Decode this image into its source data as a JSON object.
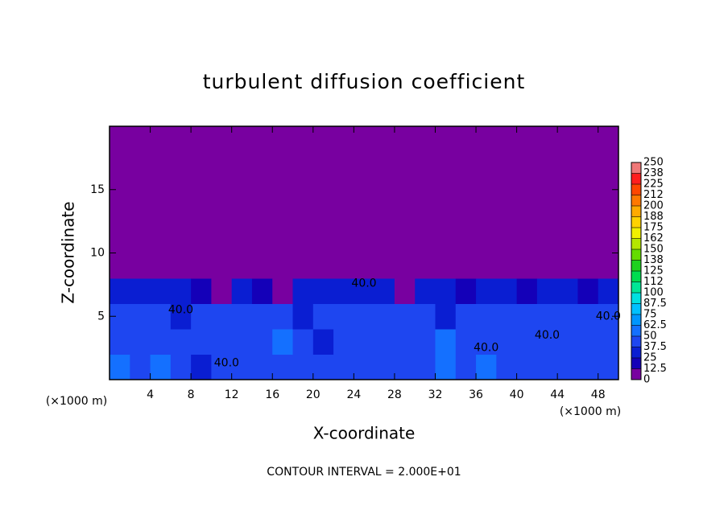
{
  "chart_data": {
    "type": "heatmap",
    "title": "turbulent diffusion coefficient",
    "x_label": "X-coordinate",
    "y_label": "Z-coordinate",
    "x_unit": "(×1000 m)",
    "y_unit": "(×1000 m)",
    "footer": "CONTOUR INTERVAL = 2.000E+01",
    "xlim": [
      0,
      50
    ],
    "ylim": [
      0,
      20
    ],
    "xticks": [
      4,
      8,
      12,
      16,
      20,
      24,
      28,
      32,
      36,
      40,
      44,
      48
    ],
    "yticks": [
      5,
      10,
      15
    ],
    "x_edges": [
      0,
      2,
      4,
      6,
      8,
      10,
      12,
      14,
      16,
      18,
      20,
      22,
      24,
      26,
      28,
      30,
      32,
      34,
      36,
      38,
      40,
      42,
      44,
      46,
      48,
      50
    ],
    "z_edges": [
      0,
      2,
      4,
      6,
      8,
      20
    ],
    "values": [
      [
        60,
        45,
        50,
        40,
        35,
        45,
        40,
        38,
        40,
        45,
        42,
        40,
        45,
        38,
        40,
        45,
        50,
        40,
        55,
        45,
        40,
        42,
        45,
        40,
        45
      ],
      [
        45,
        40,
        48,
        42,
        45,
        40,
        38,
        42,
        55,
        40,
        35,
        38,
        45,
        42,
        48,
        40,
        50,
        45,
        42,
        40,
        45,
        38,
        40,
        42,
        38
      ],
      [
        40,
        45,
        42,
        35,
        38,
        40,
        42,
        45,
        38,
        30,
        45,
        40,
        38,
        45,
        42,
        40,
        35,
        45,
        38,
        42,
        45,
        40,
        38,
        40,
        42
      ],
      [
        30,
        25,
        28,
        30,
        20,
        12,
        25,
        20,
        5,
        30,
        28,
        25,
        30,
        28,
        10,
        25,
        30,
        20,
        28,
        25,
        15,
        25,
        30,
        20,
        28
      ],
      [
        0,
        0,
        0,
        0,
        0,
        0,
        0,
        0,
        0,
        0,
        0,
        0,
        0,
        0,
        0,
        0,
        0,
        0,
        0,
        0,
        0,
        0,
        0,
        0,
        0
      ]
    ],
    "colorbar_ticks": [
      0,
      12.5,
      25,
      37.5,
      50,
      62.5,
      75,
      87.5,
      100,
      {
        "value": 112.5,
        "label": "112"
      },
      125,
      {
        "value": 137.5,
        "label": "138"
      },
      150,
      {
        "value": 162.5,
        "label": "162"
      },
      175,
      {
        "value": 187.5,
        "label": "188"
      },
      200,
      {
        "value": 212.5,
        "label": "212"
      },
      225,
      {
        "value": 237.5,
        "label": "238"
      },
      250
    ],
    "colors": [
      "#7800a0",
      "#1400b8",
      "#0a1ed2",
      "#1e46f0",
      "#1470ff",
      "#0096ff",
      "#00c0ff",
      "#00e0e0",
      "#00e696",
      "#00dc50",
      "#1ed21e",
      "#64dc00",
      "#b4e600",
      "#f0f000",
      "#ffd200",
      "#ffaa00",
      "#ff7800",
      "#ff4600",
      "#ff1e1e",
      "#f07878"
    ],
    "annotations": [
      {
        "text": "40.0",
        "x": 7,
        "z": 5.5
      },
      {
        "text": "40.0",
        "x": 25,
        "z": 7.6
      },
      {
        "text": "40.0",
        "x": 11.5,
        "z": 1.3
      },
      {
        "text": "40.0",
        "x": 37,
        "z": 2.5
      },
      {
        "text": "40.0",
        "x": 43,
        "z": 3.5
      },
      {
        "text": "40.0",
        "x": 49,
        "z": 5
      }
    ]
  }
}
